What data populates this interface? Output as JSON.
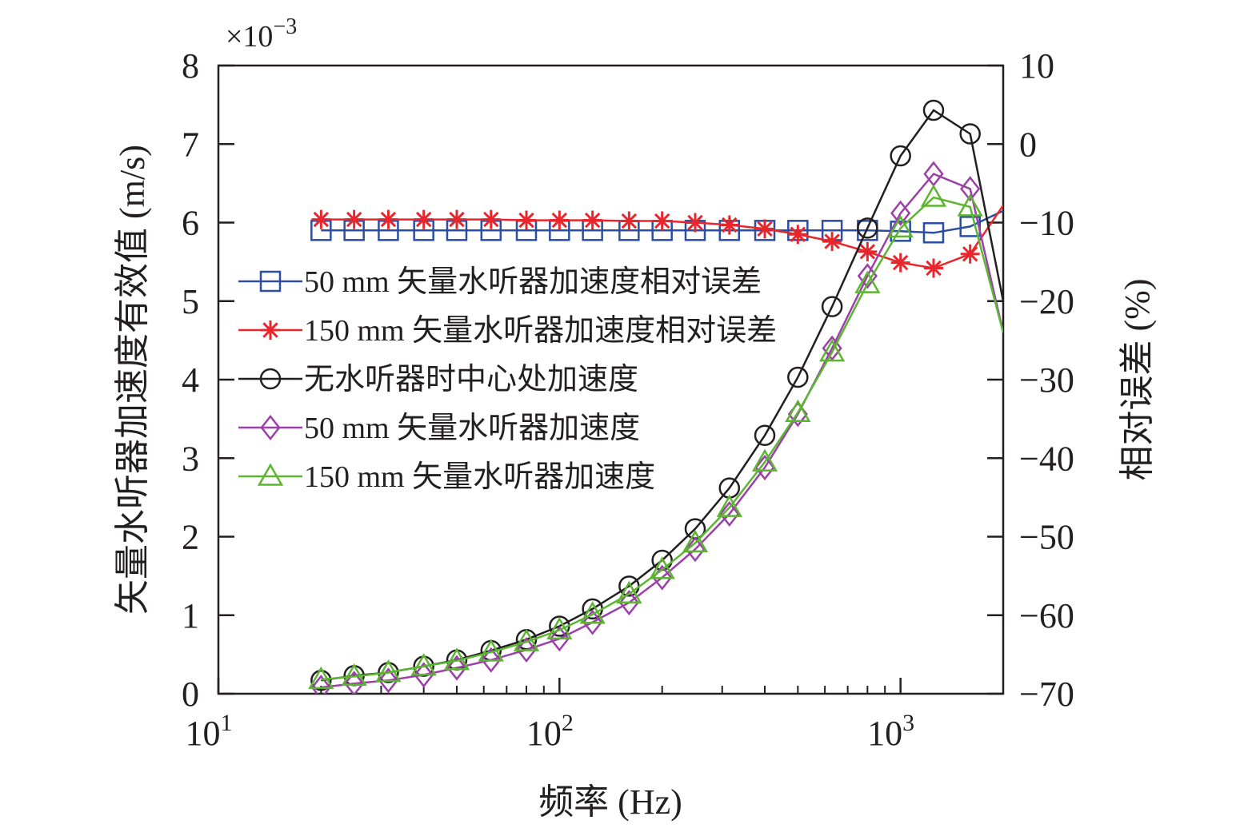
{
  "chart_data": {
    "type": "line",
    "xlabel": "频率 (Hz)",
    "ylabel_left": "矢量水听器加速度有效值 (m/s)",
    "ylabel_right": "相对误差 (%)",
    "y_left_multiplier": "×10",
    "y_left_multiplier_exp": "−3",
    "x_scale": "log",
    "xlim": [
      10,
      2000
    ],
    "x_ticks": [
      {
        "value": 10,
        "base": "10",
        "exp": "1"
      },
      {
        "value": 100,
        "base": "10",
        "exp": "2"
      },
      {
        "value": 1000,
        "base": "10",
        "exp": "3"
      }
    ],
    "ylim_left": [
      0,
      8
    ],
    "y_left_ticks": [
      "0",
      "1",
      "2",
      "3",
      "4",
      "5",
      "6",
      "7",
      "8"
    ],
    "ylim_right": [
      -70,
      10
    ],
    "y_right_ticks": [
      "−70",
      "−60",
      "−50",
      "−40",
      "−30",
      "−20",
      "−10",
      "0",
      "10"
    ],
    "grid": false,
    "legend_position": "left-middle",
    "x": [
      20,
      25,
      31.5,
      40,
      50,
      63,
      80,
      100,
      125,
      160,
      200,
      250,
      315,
      400,
      500,
      630,
      800,
      1000,
      1250,
      1600,
      2000
    ],
    "series": [
      {
        "name": "50 mm 矢量水听器加速度相对误差",
        "axis": "right",
        "marker": "square",
        "color": "#2b4ea2",
        "values": [
          -11,
          -11,
          -11,
          -11,
          -11,
          -11,
          -11,
          -11,
          -11,
          -11,
          -11,
          -11,
          -11,
          -11,
          -11,
          -11,
          -11,
          -11.1,
          -11.3,
          -10.5,
          -8.5
        ]
      },
      {
        "name": "150 mm 矢量水听器加速度相对误差",
        "axis": "right",
        "marker": "asterisk",
        "color": "#e8262b",
        "values": [
          -9.6,
          -9.6,
          -9.6,
          -9.6,
          -9.6,
          -9.6,
          -9.7,
          -9.7,
          -9.7,
          -9.8,
          -9.8,
          -10,
          -10.3,
          -10.8,
          -11.5,
          -12.4,
          -13.7,
          -15.1,
          -15.8,
          -14,
          -7.8
        ]
      },
      {
        "name": "无水听器时中心处加速度",
        "axis": "left",
        "marker": "circle",
        "color": "#231f20",
        "values": [
          0.17,
          0.23,
          0.27,
          0.35,
          0.43,
          0.55,
          0.69,
          0.86,
          1.08,
          1.37,
          1.7,
          2.1,
          2.62,
          3.29,
          4.03,
          4.93,
          5.93,
          6.85,
          7.43,
          7.13,
          5.0
        ]
      },
      {
        "name": "50 mm 矢量水听器加速度",
        "axis": "left",
        "marker": "diamond",
        "color": "#9b3fa9",
        "values": [
          0.08,
          0.13,
          0.17,
          0.24,
          0.33,
          0.43,
          0.56,
          0.7,
          0.91,
          1.16,
          1.48,
          1.84,
          2.29,
          2.88,
          3.56,
          4.4,
          5.32,
          6.12,
          6.62,
          6.43,
          4.6
        ]
      },
      {
        "name": "150 mm 矢量水听器加速度",
        "axis": "left",
        "marker": "triangle",
        "color": "#5cb531",
        "values": [
          0.18,
          0.22,
          0.27,
          0.35,
          0.42,
          0.53,
          0.66,
          0.81,
          1.01,
          1.27,
          1.58,
          1.92,
          2.37,
          2.95,
          3.58,
          4.35,
          5.22,
          5.93,
          6.32,
          6.2,
          4.6
        ]
      }
    ]
  }
}
